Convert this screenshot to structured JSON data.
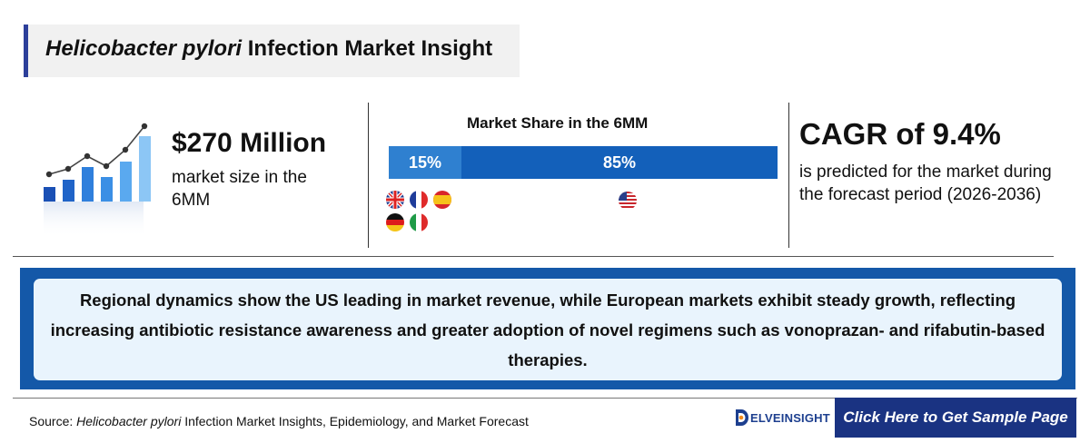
{
  "title": {
    "italic": "Helicobacter pylori",
    "rest": " Infection Market Insight"
  },
  "market_size": {
    "value": "$270 Million",
    "description": "market size in the 6MM"
  },
  "market_share": {
    "title": "Market Share in the 6MM",
    "eu_label": "15%",
    "us_label": "85%",
    "eu_flags": [
      "uk-flag",
      "france-flag",
      "spain-flag",
      "germany-flag",
      "italy-flag"
    ],
    "us_flags": [
      "us-flag"
    ]
  },
  "cagr": {
    "value": "CAGR of 9.4%",
    "description": "is predicted for the market during the forecast period (2026-2036)"
  },
  "insight": {
    "text": "Regional dynamics show the US leading in market revenue, while European markets exhibit steady growth, reflecting increasing antibiotic resistance awareness and greater adoption of novel regimens such as vonoprazan- and rifabutin-based therapies."
  },
  "footer": {
    "source_label": "Source: ",
    "source_italic": "Helicobacter pylori",
    "source_rest": " Infection Market Insights, Epidemiology, and Market Forecast",
    "logo_letter": "D",
    "logo_text": "ELVEINSIGHT",
    "cta": "Click Here to Get Sample Page"
  },
  "colors": {
    "brand_dark": "#1a3382",
    "bar_eu": "#2f80d0",
    "bar_us": "#1360ba",
    "insight_bg": "#e9f4fd",
    "insight_border": "#1458a8"
  }
}
